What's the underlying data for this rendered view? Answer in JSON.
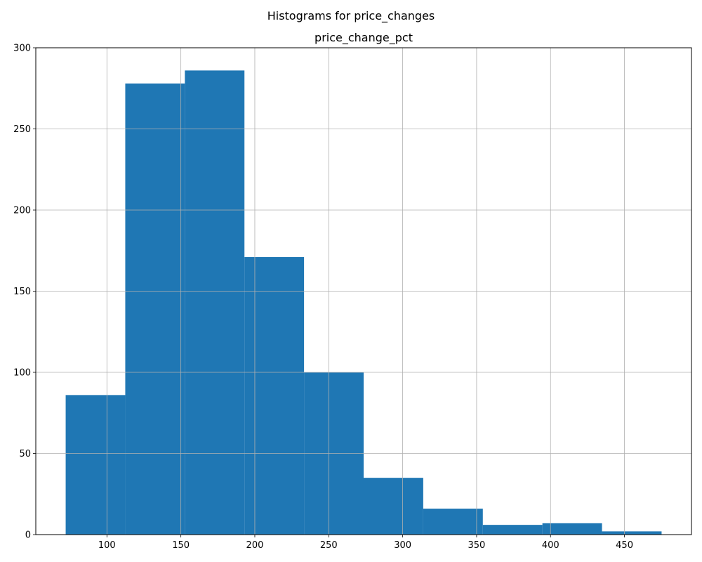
{
  "figure": {
    "suptitle": "Histograms for price_changes"
  },
  "chart_data": {
    "type": "bar",
    "title": "price_change_pct",
    "xlabel": "",
    "ylabel": "",
    "bin_edges": [
      72.1,
      112.4,
      152.7,
      193.0,
      233.3,
      273.6,
      313.9,
      354.2,
      394.5,
      434.8,
      475.1
    ],
    "values": [
      86,
      278,
      286,
      171,
      100,
      35,
      16,
      6,
      7,
      2
    ],
    "xlim": [
      51.9,
      495.3
    ],
    "ylim": [
      0,
      300
    ],
    "xticks": [
      100,
      150,
      200,
      250,
      300,
      350,
      400,
      450
    ],
    "yticks": [
      0,
      50,
      100,
      150,
      200,
      250,
      300
    ],
    "grid": true,
    "bar_color": "#1f77b4",
    "grid_color": "#b0b0b0"
  }
}
